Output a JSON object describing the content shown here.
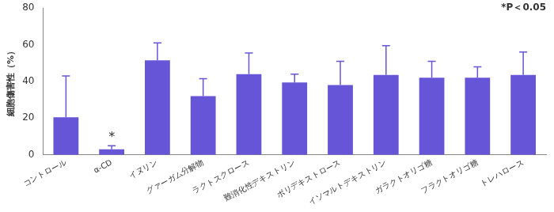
{
  "chart_data": {
    "type": "bar",
    "y_label": "細胞傷害性（%）",
    "categories": [
      "コントロール",
      "α-CD",
      "イヌリン",
      "グァーガム分解物",
      "ラクトスクロース",
      "難消化性デキストリン",
      "ポリデキストロース",
      "イソマルトデキストリン",
      "ガラクトオリゴ糖",
      "フラクトオリゴ糖",
      "トレハロース"
    ],
    "values": [
      20.5,
      3,
      51.5,
      32,
      44,
      39.5,
      38,
      43.5,
      42,
      42,
      43.5
    ],
    "errors": [
      22.5,
      2,
      9.5,
      9.5,
      11.5,
      4.5,
      13,
      16,
      9,
      6,
      12.5
    ],
    "color": "#6655d6",
    "ylim": [
      0,
      80
    ],
    "yticks": [
      0,
      20,
      40,
      60,
      80
    ],
    "grid": false,
    "annotations": [
      {
        "text": "*P＜0.05"
      },
      {
        "text": "*",
        "category": "α-CD"
      }
    ]
  }
}
